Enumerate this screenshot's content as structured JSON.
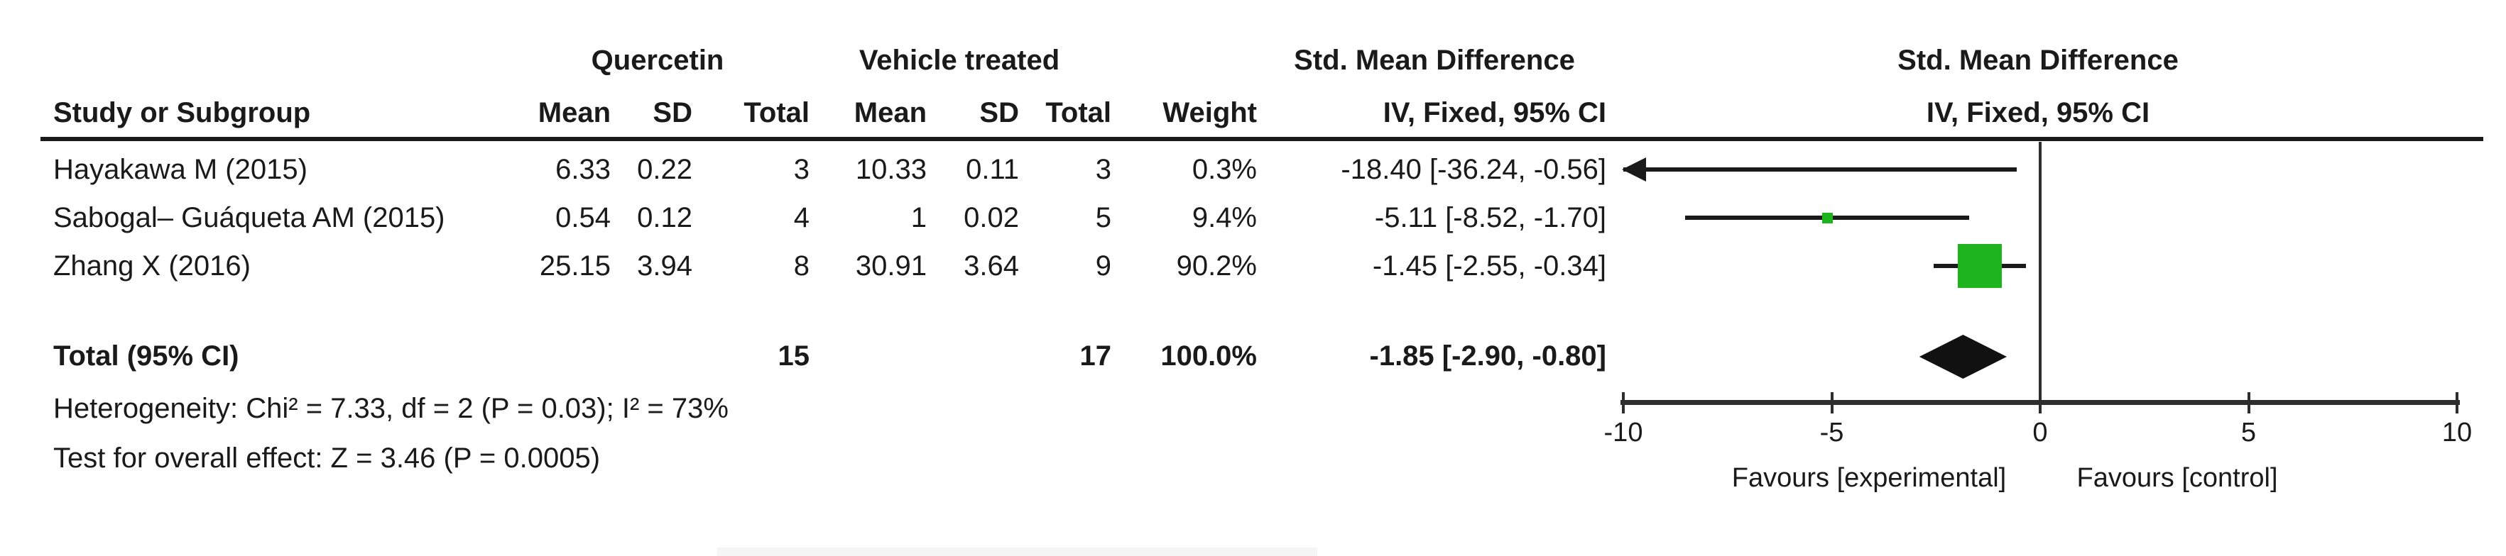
{
  "headers": {
    "col_study": "Study or Subgroup",
    "col_mean": "Mean",
    "col_sd": "SD",
    "col_total": "Total",
    "col_weight": "Weight",
    "col_ci": "IV, Fixed, 95% CI"
  },
  "chart_data": {
    "type": "forest",
    "effect_measure": "Std. Mean Difference",
    "method_label": "IV, Fixed, 95% CI",
    "group1_label": "Quercetin",
    "group2_label": "Vehicle treated",
    "smd_header_line1": "Std. Mean Difference",
    "smd_header_line2": "IV, Fixed, 95% CI",
    "plot_header_line1": "Std. Mean Difference",
    "plot_header_line2": "IV, Fixed, 95% CI",
    "studies": [
      {
        "name": "Hayakawa M (2015)",
        "mean1": "6.33",
        "sd1": "0.22",
        "total1": "3",
        "mean2": "10.33",
        "sd2": "0.11",
        "total2": "3",
        "weight": "0.3%",
        "weight_value": 0.3,
        "est": -18.4,
        "lo": -36.24,
        "hi": -0.56,
        "ci_text": "-18.40 [-36.24, -0.56]"
      },
      {
        "name": "Sabogal– Guáqueta AM (2015)",
        "mean1": "0.54",
        "sd1": "0.12",
        "total1": "4",
        "mean2": "1",
        "sd2": "0.02",
        "total2": "5",
        "weight": "9.4%",
        "weight_value": 9.4,
        "est": -5.11,
        "lo": -8.52,
        "hi": -1.7,
        "ci_text": "-5.11 [-8.52, -1.70]"
      },
      {
        "name": "Zhang X (2016)",
        "mean1": "25.15",
        "sd1": "3.94",
        "total1": "8",
        "mean2": "30.91",
        "sd2": "3.64",
        "total2": "9",
        "weight": "90.2%",
        "weight_value": 90.2,
        "est": -1.45,
        "lo": -2.55,
        "hi": -0.34,
        "ci_text": "-1.45 [-2.55, -0.34]"
      }
    ],
    "total": {
      "label": "Total (95% CI)",
      "total1": "15",
      "total2": "17",
      "weight": "100.0%",
      "est": -1.85,
      "lo": -2.9,
      "hi": -0.8,
      "ci_text": "-1.85 [-2.90, -0.80]"
    },
    "heterogeneity": "Heterogeneity: Chi² = 7.33, df = 2 (P = 0.03); I² = 73%",
    "overall_effect": "Test for overall effect: Z = 3.46 (P = 0.0005)",
    "x_axis": {
      "min": -10,
      "max": 10,
      "ticks": [
        -10,
        -5,
        0,
        5,
        10
      ]
    },
    "favours_left": "Favours [experimental]",
    "favours_right": "Favours [control]",
    "marker_color": "#1eb41e",
    "diamond_color": "#111111",
    "line_color": "#1a1a1a"
  }
}
